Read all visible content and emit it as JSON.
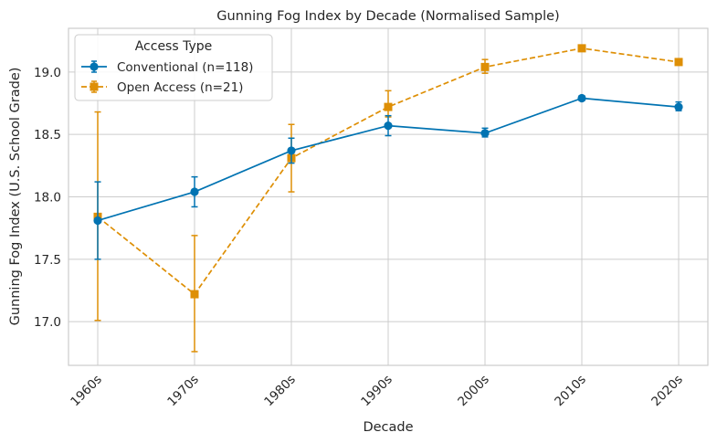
{
  "chart_data": {
    "type": "line",
    "title": "Gunning Fog Index by Decade (Normalised Sample)",
    "xlabel": "Decade",
    "ylabel": "Gunning Fog Index (U.S. School Grade)",
    "categories": [
      "1960s",
      "1970s",
      "1980s",
      "1990s",
      "2000s",
      "2010s",
      "2020s"
    ],
    "ylim": [
      16.65,
      19.35
    ],
    "yticks": [
      17.0,
      17.5,
      18.0,
      18.5,
      19.0
    ],
    "ytick_labels": [
      "17.0",
      "17.5",
      "18.0",
      "18.5",
      "19.0"
    ],
    "grid": true,
    "legend": {
      "title": "Access Type",
      "position": "top-left"
    },
    "series": [
      {
        "name": "Conventional (n=118)",
        "color": "#0173b2",
        "marker": "circle",
        "linestyle": "solid",
        "values": [
          17.81,
          18.04,
          18.37,
          18.57,
          18.51,
          18.79,
          18.72
        ],
        "error": [
          [
            17.5,
            18.12
          ],
          [
            17.92,
            18.16
          ],
          [
            18.27,
            18.47
          ],
          [
            18.49,
            18.65
          ],
          [
            18.48,
            18.55
          ],
          [
            18.77,
            18.81
          ],
          [
            18.69,
            18.76
          ]
        ]
      },
      {
        "name": "Open Access (n=21)",
        "color": "#de8f05",
        "marker": "square",
        "linestyle": "dashed",
        "values": [
          17.84,
          17.22,
          18.31,
          18.72,
          19.04,
          19.19,
          19.08
        ],
        "error": [
          [
            17.01,
            18.68
          ],
          [
            16.76,
            17.69
          ],
          [
            18.04,
            18.58
          ],
          [
            18.64,
            18.85
          ],
          [
            18.99,
            19.1
          ],
          [
            19.17,
            19.21
          ],
          [
            19.06,
            19.1
          ]
        ]
      }
    ]
  }
}
